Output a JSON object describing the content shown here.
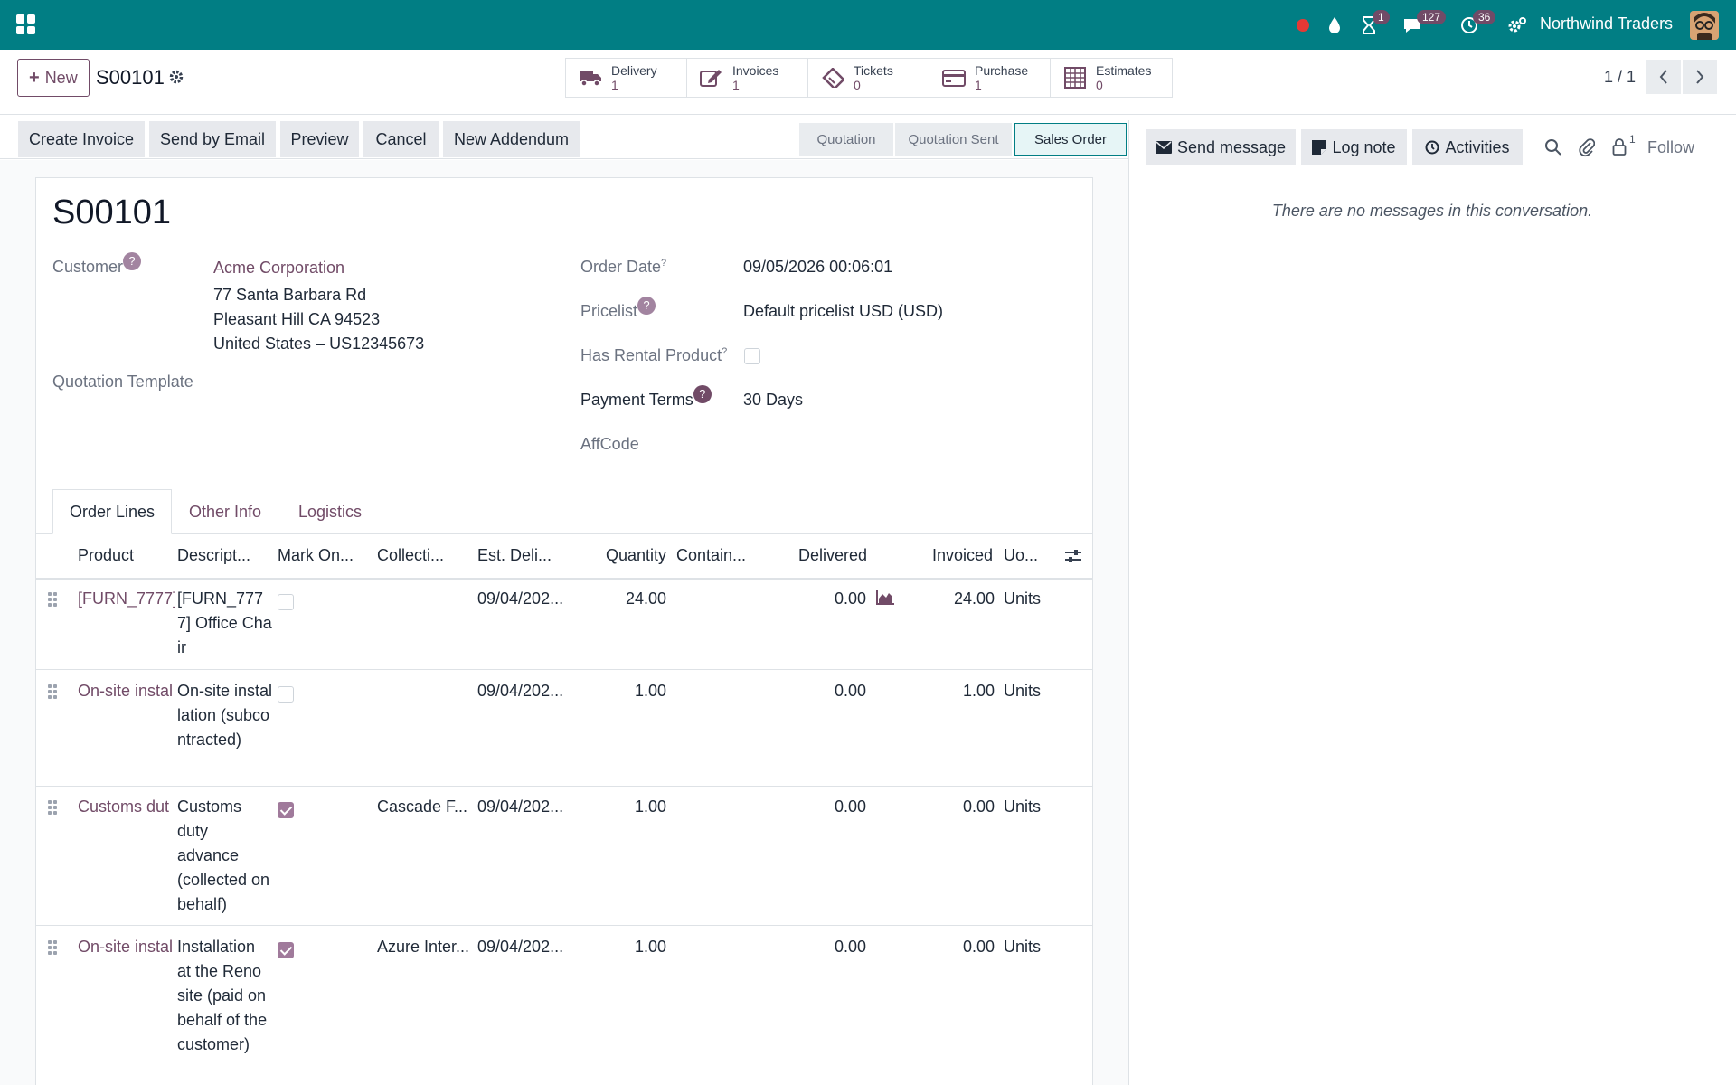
{
  "navbar": {
    "company": "Northwind Traders",
    "activity_badge": "1",
    "messages_badge": "127",
    "clock_badge": "36",
    "colors": {
      "brand": "#017e84",
      "accent": "#714b67"
    }
  },
  "control": {
    "new_label": "New",
    "record_name": "S00101",
    "smart_buttons": [
      {
        "label": "Delivery",
        "value": "1",
        "icon": "truck-icon"
      },
      {
        "label": "Invoices",
        "value": "1",
        "icon": "edit-icon"
      },
      {
        "label": "Tickets",
        "value": "0",
        "icon": "ticket-icon"
      },
      {
        "label": "Purchase",
        "value": "1",
        "icon": "credit-card-icon"
      },
      {
        "label": "Estimates",
        "value": "0",
        "icon": "calculator-icon"
      }
    ],
    "pager": "1 / 1"
  },
  "actions": {
    "create_invoice": "Create Invoice",
    "send_email": "Send by Email",
    "preview": "Preview",
    "cancel": "Cancel",
    "new_addendum": "New Addendum"
  },
  "stages": [
    "Quotation",
    "Quotation Sent",
    "Sales Order"
  ],
  "form": {
    "title": "S00101",
    "customer_label": "Customer",
    "customer_name": "Acme Corporation",
    "address_line1": "77 Santa Barbara Rd",
    "address_line2": "Pleasant Hill CA 94523",
    "address_line3": "United States – US12345673",
    "quotation_template_label": "Quotation Template",
    "order_date_label": "Order Date",
    "order_date": "09/05/2026 00:06:01",
    "pricelist_label": "Pricelist",
    "pricelist": "Default pricelist USD (USD)",
    "rental_label": "Has Rental Product",
    "payment_terms_label": "Payment Terms",
    "payment_terms": "30 Days",
    "affcode_label": "AffCode",
    "help_glyph": "?"
  },
  "tabs": [
    "Order Lines",
    "Other Info",
    "Logistics"
  ],
  "table": {
    "headers": [
      "Product",
      "Descript...",
      "Mark On...",
      "Collecti...",
      "Est. Deli...",
      "Quantity",
      "Contain...",
      "Delivered",
      "Invoiced",
      "Uo..."
    ],
    "rows": [
      {
        "product": "[FURN_7777]",
        "description": "[FURN_7777] Office Chair",
        "mark_on": false,
        "collection": "",
        "est_delivery": "09/04/202...",
        "quantity": "24.00",
        "delivered": "0.00",
        "invoiced": "24.00",
        "uom": "Units",
        "forecast_icon": true
      },
      {
        "product": "On-site instal",
        "description": "On-site installation (subcontracted)",
        "mark_on": false,
        "collection": "",
        "est_delivery": "09/04/202...",
        "quantity": "1.00",
        "delivered": "0.00",
        "invoiced": "1.00",
        "uom": "Units",
        "forecast_icon": false
      },
      {
        "product": "Customs dut",
        "description": "Customs duty advance (collected on behalf)",
        "mark_on": true,
        "collection": "Cascade F...",
        "est_delivery": "09/04/202...",
        "quantity": "1.00",
        "delivered": "0.00",
        "invoiced": "0.00",
        "uom": "Units",
        "forecast_icon": false
      },
      {
        "product": "On-site instal",
        "description": "Installation at the Reno site (paid on behalf of the customer)",
        "mark_on": true,
        "collection": "Azure Inter...",
        "est_delivery": "09/04/202...",
        "quantity": "1.00",
        "delivered": "0.00",
        "invoiced": "0.00",
        "uom": "Units",
        "forecast_icon": false
      }
    ]
  },
  "chatter": {
    "send_message": "Send message",
    "log_note": "Log note",
    "activities": "Activities",
    "followers_count": "1",
    "follow": "Follow",
    "empty": "There are no messages in this conversation."
  }
}
